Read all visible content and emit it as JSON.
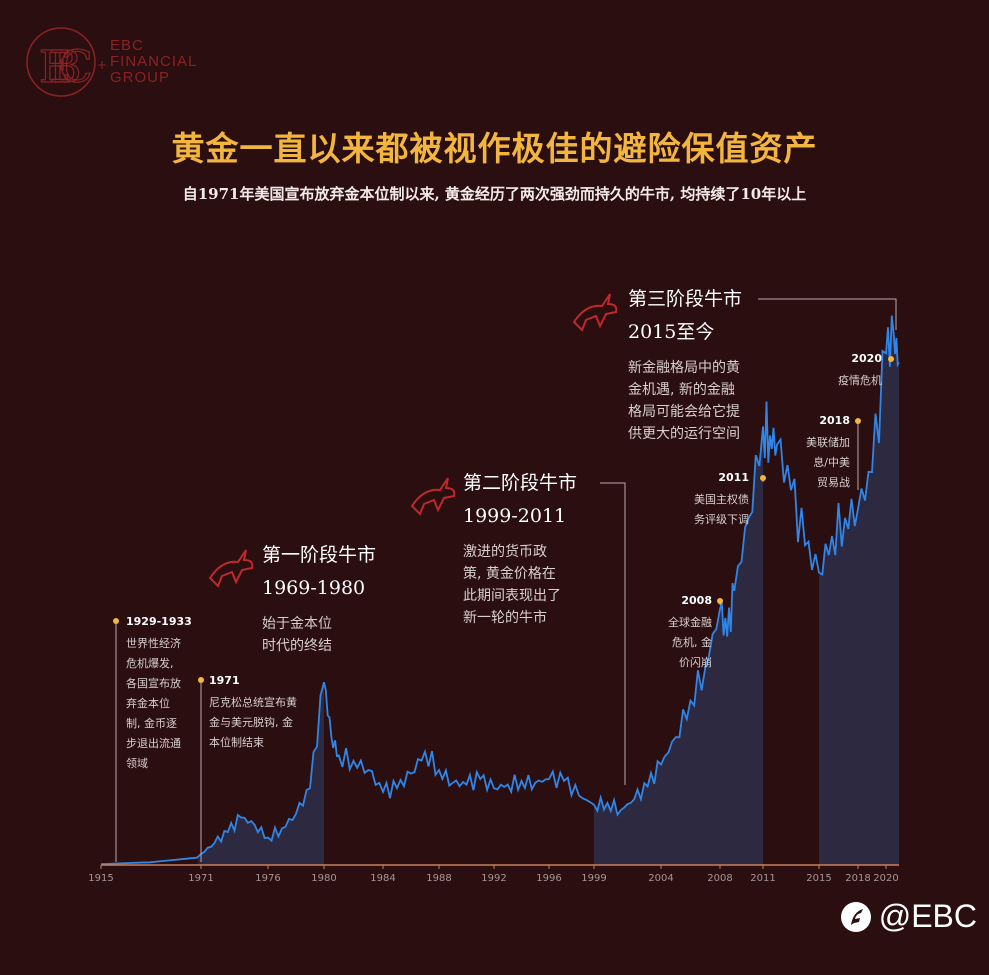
{
  "brand": {
    "line1": "EBC",
    "line2": "FINANCIAL",
    "line3": "GROUP"
  },
  "title": {
    "part1": "黄金一直以来都被视作",
    "part2": "极佳的避险保值资产"
  },
  "subtitle": "自1971年美国宣布放弃金本位制以来, 黄金经历了两次强劲而持久的牛市, 均持续了10年以上",
  "watermark": "@EBC",
  "colors": {
    "line": "#2f86e8",
    "area": "#2c2b45",
    "accent": "#f2b63e",
    "axis": "#c9805a",
    "bull": "#c0282d"
  },
  "phases": [
    {
      "title": "第一阶段牛市",
      "period": "1969-1980",
      "desc": [
        "始于金本位",
        "时代的终结"
      ]
    },
    {
      "title": "第二阶段牛市",
      "period": "1999-2011",
      "desc": [
        "激进的货币政",
        "策, 黄金价格在",
        "此期间表现出了",
        "新一轮的牛市"
      ]
    },
    {
      "title": "第三阶段牛市",
      "period": "2015至今",
      "desc": [
        "新金融格局中的黄",
        "金机遇, 新的金融",
        "格局可能会给它提",
        "供更大的运行空间"
      ]
    }
  ],
  "events": [
    {
      "year": "1929-1933",
      "lines": [
        "世界性经济",
        "危机爆发,",
        "各国宣布放",
        "弃金本位",
        "制, 金币逐",
        "步退出流通",
        "领域"
      ]
    },
    {
      "year": "1971",
      "lines": [
        "尼克松总统宣布黄",
        "金与美元脱钩, 金",
        "本位制结束"
      ]
    },
    {
      "year": "2008",
      "lines": [
        "全球金融",
        "危机, 金",
        "价闪崩"
      ]
    },
    {
      "year": "2011",
      "lines": [
        "美国主权债",
        "务评级下调"
      ]
    },
    {
      "year": "2018",
      "lines": [
        "美联储加",
        "息/中美",
        "贸易战"
      ]
    },
    {
      "year": "2020",
      "lines": [
        "疫情危机"
      ]
    }
  ],
  "chart_data": {
    "type": "area",
    "x_ticks": [
      "1915",
      "1971",
      "1976",
      "1980",
      "1984",
      "1988",
      "1992",
      "1996",
      "1999",
      "2004",
      "2008",
      "2011",
      "2015",
      "2018",
      "2020"
    ],
    "shaded_periods": [
      [
        "1969",
        "1980"
      ],
      [
        "1999",
        "2011"
      ],
      [
        "2015",
        "2021"
      ]
    ],
    "x": [
      1915,
      1935,
      1968,
      1971,
      1972,
      1973,
      1974,
      1975,
      1976,
      1977,
      1978,
      1979,
      1980,
      1980.5,
      1981,
      1982,
      1983,
      1984,
      1985,
      1986,
      1987,
      1988,
      1989,
      1990,
      1991,
      1992,
      1993,
      1994,
      1995,
      1996,
      1997,
      1998,
      1999,
      2000,
      2001,
      2002,
      2003,
      2004,
      2005,
      2006,
      2007,
      2008,
      2008.5,
      2009,
      2010,
      2011,
      2011.5,
      2012,
      2013,
      2014,
      2015,
      2016,
      2017,
      2018,
      2019,
      2020,
      2020.6,
      2021
    ],
    "y": [
      0.5,
      1.5,
      4,
      6,
      12,
      18,
      26,
      22,
      15,
      20,
      28,
      42,
      100,
      70,
      60,
      57,
      52,
      40,
      42,
      50,
      62,
      52,
      45,
      44,
      47,
      42,
      44,
      46,
      45,
      47,
      46,
      38,
      33,
      34,
      30,
      36,
      43,
      55,
      70,
      90,
      108,
      140,
      125,
      150,
      190,
      240,
      235,
      230,
      205,
      175,
      160,
      180,
      190,
      195,
      215,
      280,
      290,
      275
    ]
  }
}
